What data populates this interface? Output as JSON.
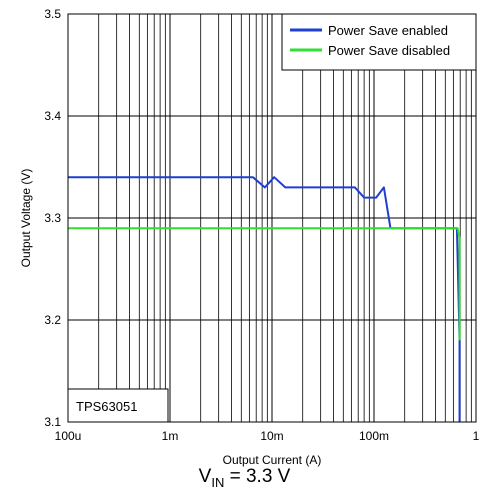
{
  "chart_data": {
    "type": "line",
    "xlabel": "Output Current (A)",
    "ylabel": "Output Voltage (V)",
    "x_scale": "log",
    "xlim": [
      0.0001,
      1
    ],
    "ylim": [
      3.1,
      3.5
    ],
    "x_ticks": [
      {
        "value": 0.0001,
        "label": "100u"
      },
      {
        "value": 0.001,
        "label": "1m"
      },
      {
        "value": 0.01,
        "label": "10m"
      },
      {
        "value": 0.1,
        "label": "100m"
      },
      {
        "value": 1,
        "label": "1"
      }
    ],
    "y_ticks": [
      {
        "value": 3.1,
        "label": "3.1"
      },
      {
        "value": 3.2,
        "label": "3.2"
      },
      {
        "value": 3.3,
        "label": "3.3"
      },
      {
        "value": 3.4,
        "label": "3.4"
      },
      {
        "value": 3.5,
        "label": "3.5"
      }
    ],
    "grid": true,
    "legend_position": "top-right",
    "series": [
      {
        "name": "Power Save enabled",
        "color": "#1f3fd0",
        "x": [
          0.0001,
          0.0065,
          0.0085,
          0.0105,
          0.0135,
          0.065,
          0.08,
          0.105,
          0.125,
          0.145,
          0.65,
          0.69,
          0.69
        ],
        "y": [
          3.34,
          3.34,
          3.33,
          3.34,
          3.33,
          3.33,
          3.32,
          3.32,
          3.33,
          3.29,
          3.29,
          3.18,
          3.1
        ]
      },
      {
        "name": "Power Save disabled",
        "color": "#33dd33",
        "x": [
          0.0001,
          0.66,
          0.69,
          0.69
        ],
        "y": [
          3.29,
          3.29,
          3.28,
          3.18
        ]
      }
    ],
    "annotation": "TPS63051"
  },
  "caption": {
    "prefix": "V",
    "subscript": "IN",
    "suffix": " = 3.3 V"
  }
}
